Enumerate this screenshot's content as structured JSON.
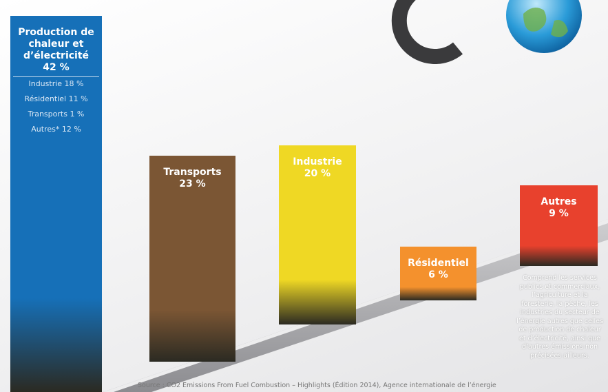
{
  "chart_data": {
    "type": "bar",
    "categories": [
      "Production de chaleur et d’électricité",
      "Transports",
      "Industrie",
      "Résidentiel",
      "Autres"
    ],
    "values": [
      42,
      23,
      20,
      6,
      9
    ],
    "value_labels": [
      "42 %",
      "23 %",
      "20 %",
      "6 %",
      "9 %"
    ],
    "colors": [
      "#1670b8",
      "#7b5634",
      "#efd824",
      "#f4912d",
      "#e8412d"
    ],
    "breakdown": [
      "Industrie 18 %",
      "Résidentiel 11 %",
      "Transports 1 %",
      "Autres* 12 %"
    ],
    "note": "Comprend les services publics et commerciaux, l’agriculture et la foresterie, la pêche, les industries du secteur de l’énergie autres que celles de production de chaleur et d’électricité, ainsi que d’autres émissions non précisées ailleurs.",
    "source": "Source : CO2 Emissions From Fuel Combustion – Highlights (Édition 2014), Agence internationale de l’énergie",
    "logo_subscript": "2"
  }
}
